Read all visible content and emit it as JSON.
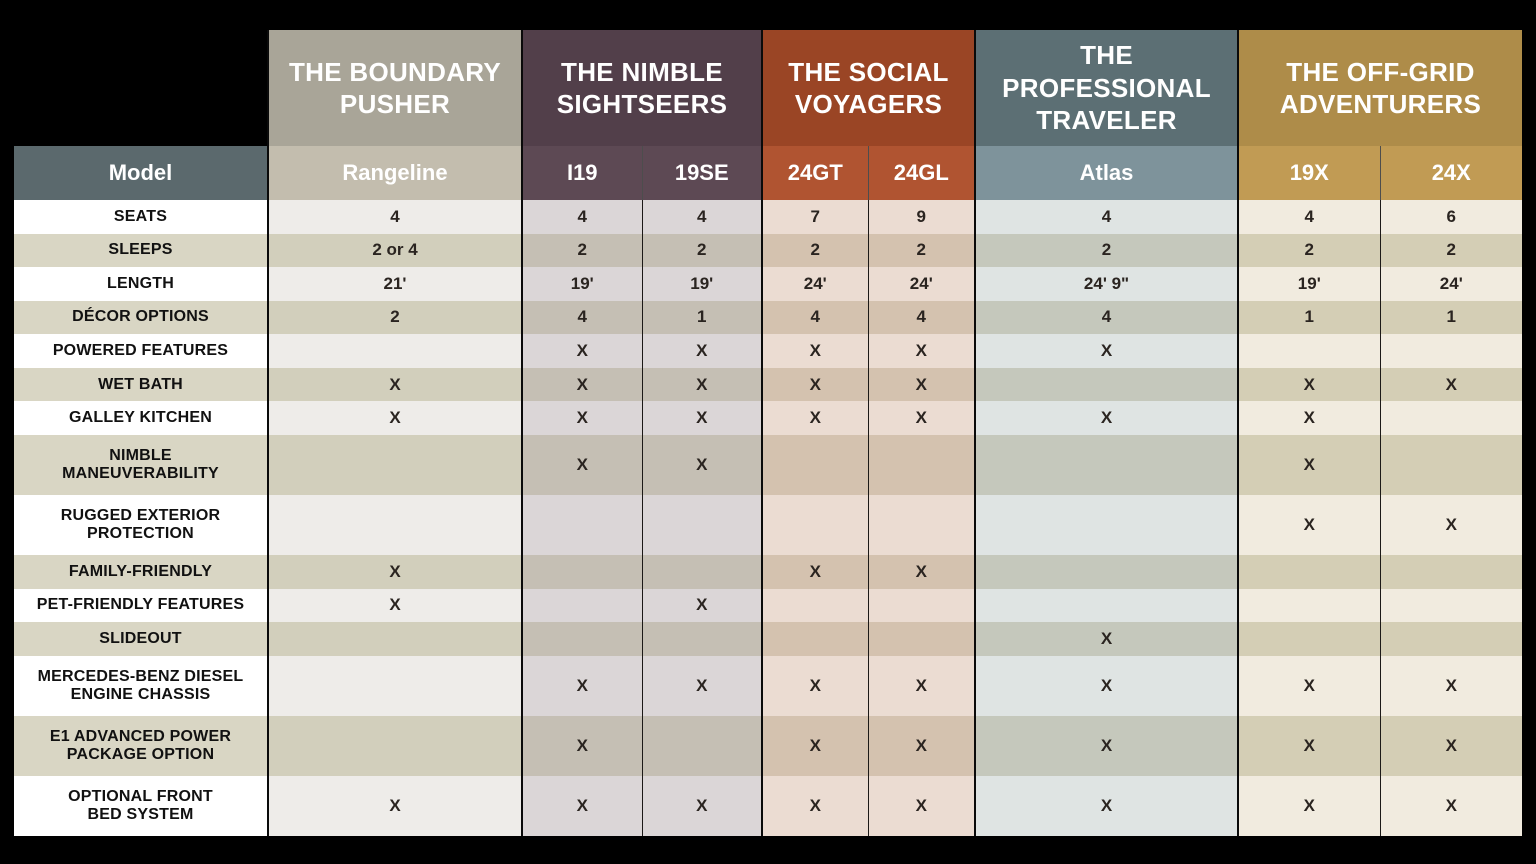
{
  "palette": {
    "page_bg": "#000000",
    "corner_bg": "#5b696d",
    "label_light": "#ffffff",
    "label_dark": "#d9d6c4",
    "label_text": "#111111",
    "value_text": "#2a2420",
    "groups": [
      {
        "header": "#a9a598",
        "model": "#c3bdae",
        "light": "#eeece9",
        "dark": "#d2cfbc"
      },
      {
        "header": "#523f4a",
        "model": "#5d4954",
        "light": "#dbd6d7",
        "dark": "#c5bfb4"
      },
      {
        "header": "#9a4525",
        "model": "#b05431",
        "light": "#ebdcd2",
        "dark": "#d4c2af",
        "accent_top": "#803a1e"
      },
      {
        "header": "#5c6f74",
        "model": "#7e939b",
        "light": "#dfe4e3",
        "dark": "#c5c8bc"
      },
      {
        "header": "#ae8c49",
        "model": "#c19b54",
        "light": "#f1ebdf",
        "dark": "#d4ceb5"
      }
    ]
  },
  "chart_data": {
    "type": "table",
    "corner_label": "Model",
    "column_groups": [
      {
        "label": "THE BOUNDARY\nPUSHER",
        "models": [
          "Rangeline"
        ]
      },
      {
        "label": "THE NIMBLE\nSIGHTSEERS",
        "models": [
          "I19",
          "19SE"
        ]
      },
      {
        "label": "THE SOCIAL\nVOYAGERS",
        "models": [
          "24GT",
          "24GL"
        ]
      },
      {
        "label": "THE\nPROFESSIONAL\nTRAVELER",
        "models": [
          "Atlas"
        ]
      },
      {
        "label": "THE OFF-GRID\nADVENTURERS",
        "models": [
          "19X",
          "24X"
        ]
      }
    ],
    "rows": [
      {
        "label": "SEATS",
        "values": [
          "4",
          "4",
          "4",
          "7",
          "9",
          "4",
          "4",
          "6"
        ]
      },
      {
        "label": "SLEEPS",
        "values": [
          "2 or 4",
          "2",
          "2",
          "2",
          "2",
          "2",
          "2",
          "2"
        ]
      },
      {
        "label": "LENGTH",
        "values": [
          "21'",
          "19'",
          "19'",
          "24'",
          "24'",
          "24' 9\"",
          "19'",
          "24'"
        ]
      },
      {
        "label": "DÉCOR OPTIONS",
        "values": [
          "2",
          "4",
          "1",
          "4",
          "4",
          "4",
          "1",
          "1"
        ]
      },
      {
        "label": "POWERED FEATURES",
        "values": [
          "",
          "X",
          "X",
          "X",
          "X",
          "X",
          "",
          ""
        ]
      },
      {
        "label": "WET BATH",
        "values": [
          "X",
          "X",
          "X",
          "X",
          "X",
          "",
          "X",
          "X"
        ]
      },
      {
        "label": "GALLEY KITCHEN",
        "values": [
          "X",
          "X",
          "X",
          "X",
          "X",
          "X",
          "X",
          ""
        ]
      },
      {
        "label": "NIMBLE\nMANEUVERABILITY",
        "values": [
          "",
          "X",
          "X",
          "",
          "",
          "",
          "X",
          ""
        ]
      },
      {
        "label": "RUGGED EXTERIOR\nPROTECTION",
        "values": [
          "",
          "",
          "",
          "",
          "",
          "",
          "X",
          "X"
        ]
      },
      {
        "label": "FAMILY-FRIENDLY",
        "values": [
          "X",
          "",
          "",
          "X",
          "X",
          "",
          "",
          ""
        ]
      },
      {
        "label": "PET-FRIENDLY FEATURES",
        "values": [
          "X",
          "",
          "X",
          "",
          "",
          "",
          "",
          ""
        ]
      },
      {
        "label": "SLIDEOUT",
        "values": [
          "",
          "",
          "",
          "",
          "",
          "X",
          "",
          ""
        ]
      },
      {
        "label": "MERCEDES-BENZ DIESEL\nENGINE CHASSIS",
        "values": [
          "",
          "X",
          "X",
          "X",
          "X",
          "X",
          "X",
          "X"
        ]
      },
      {
        "label": "E1 ADVANCED POWER\nPACKAGE OPTION",
        "values": [
          "",
          "X",
          "",
          "X",
          "X",
          "X",
          "X",
          "X"
        ]
      },
      {
        "label": "OPTIONAL FRONT\nBED SYSTEM",
        "values": [
          "X",
          "X",
          "X",
          "X",
          "X",
          "X",
          "X",
          "X"
        ]
      }
    ]
  }
}
